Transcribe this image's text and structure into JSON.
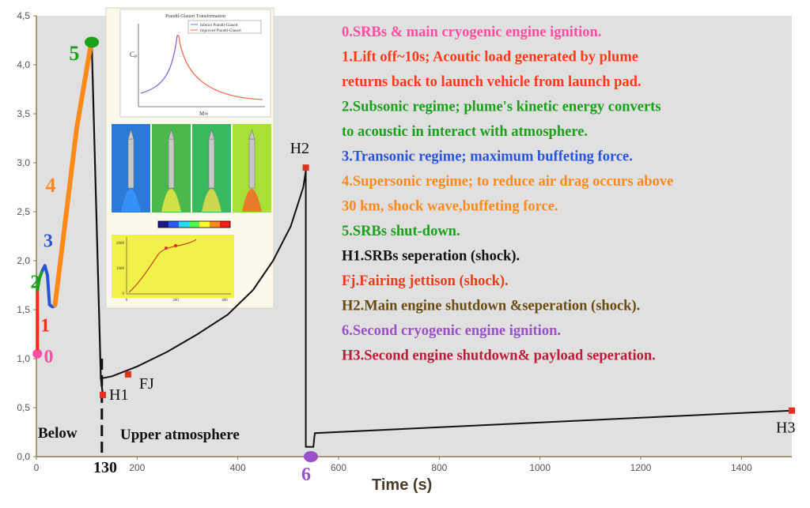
{
  "chart_data": {
    "type": "line",
    "title": "",
    "xlabel": "Time (s)",
    "ylabel": "",
    "xlim": [
      0,
      1500
    ],
    "ylim": [
      0,
      4.5
    ],
    "grid": false,
    "x_ticks": [
      "0",
      "200",
      "400",
      "600",
      "800",
      "1000",
      "1200",
      "1400"
    ],
    "y_ticks": [
      "0,0",
      "0,5",
      "1,0",
      "1,5",
      "2,0",
      "2,5",
      "3,0",
      "3,5",
      "4,0",
      "4,5"
    ],
    "series": [
      {
        "color": "#111111",
        "points": [
          [
            130,
            0.8
          ],
          [
            150,
            0.82
          ],
          [
            200,
            0.92
          ],
          [
            260,
            1.07
          ],
          [
            320,
            1.25
          ],
          [
            380,
            1.45
          ],
          [
            430,
            1.7
          ],
          [
            470,
            2.0
          ],
          [
            505,
            2.35
          ],
          [
            530,
            2.75
          ],
          [
            535,
            2.92
          ],
          [
            535,
            0.1
          ],
          [
            545,
            0.1
          ],
          [
            550,
            0.1
          ],
          [
            552,
            0.2
          ],
          [
            553,
            0.24
          ],
          [
            1500,
            0.47
          ]
        ]
      }
    ],
    "phases": [
      {
        "label": "0",
        "color": "#ff4fa0",
        "points": [
          [
            2,
            1.05
          ]
        ]
      },
      {
        "label": "1",
        "color": "#ff2a1a",
        "points": [
          [
            2,
            1.1
          ],
          [
            2,
            1.7
          ]
        ]
      },
      {
        "label": "2",
        "color": "#1aa01a",
        "points": [
          [
            2,
            1.7
          ],
          [
            6,
            1.82
          ],
          [
            12,
            1.9
          ]
        ]
      },
      {
        "label": "3",
        "color": "#2855d8",
        "points": [
          [
            12,
            1.9
          ],
          [
            17,
            1.95
          ],
          [
            22,
            1.85
          ],
          [
            24,
            1.7
          ],
          [
            26,
            1.55
          ],
          [
            32,
            1.53
          ],
          [
            37,
            1.54
          ]
        ]
      },
      {
        "label": "4",
        "color": "#ff8a1a",
        "points": [
          [
            37,
            1.55
          ],
          [
            55,
            2.3
          ],
          [
            80,
            3.35
          ],
          [
            108,
            4.2
          ]
        ]
      },
      {
        "label": "5",
        "color": "#1aa01a",
        "points": [
          [
            110,
            4.23
          ]
        ]
      }
    ],
    "markers": [
      {
        "label": "H1",
        "x": 132,
        "y": 0.63,
        "color": "#e03020"
      },
      {
        "label": "FJ",
        "x": 182,
        "y": 0.84,
        "color": "#e03020"
      },
      {
        "label": "H2",
        "x": 535,
        "y": 2.95,
        "color": "#e03020"
      },
      {
        "label": "6",
        "x": 545,
        "y": 0.0,
        "color": "#9b4fc8"
      },
      {
        "label": "H3",
        "x": 1500,
        "y": 0.47,
        "color": "#e03020"
      }
    ],
    "annotations": {
      "divider_label": "130",
      "below_label": "Below",
      "upper_label": "Upper atmosphere"
    },
    "legend_placement": "right",
    "legend": [
      {
        "text": "0.SRBs & main cryogenic engine ignition.",
        "color": "#ff4fa0"
      },
      {
        "text": "1.Lift off~10s; Acoutic load generated by plume",
        "color": "#ff3a1a"
      },
      {
        "text": "returns back to launch vehicle from launch pad.",
        "color": "#ff3a1a"
      },
      {
        "text": "2.Subsonic regime; plume's kinetic energy converts",
        "color": "#1aa01a"
      },
      {
        "text": "to acoustic in interact with atmosphere.",
        "color": "#1aa01a"
      },
      {
        "text": "3.Transonic regime; maximum buffeting force.",
        "color": "#2855d8"
      },
      {
        "text": "4.Supersonic regime; to reduce air drag occurs above",
        "color": "#ff8a1a"
      },
      {
        "text": "30 km, shock wave,buffeting force.",
        "color": "#ff8a1a"
      },
      {
        "text": "5.SRBs shut-down.",
        "color": "#1aa01a"
      },
      {
        "text": "H1.SRBs seperation (shock).",
        "color": "#111111"
      },
      {
        "text": "Fj.Fairing jettison (shock).",
        "color": "#e0401a"
      },
      {
        "text": "H2.Main engine shutdown &seperation (shock).",
        "color": "#6b4a10"
      },
      {
        "text": "6.Second cryogenic engine ignition.",
        "color": "#9b4fc8"
      },
      {
        "text": "H3.Second engine shutdown& payload seperation.",
        "color": "#c01a3a"
      }
    ],
    "inset_top": {
      "title": "Prandtl-Glauert Transformation",
      "legend": [
        "Inferior Prandtl-Glauert",
        "Improved Prandtl-Glauert"
      ],
      "ylabel": "Cₚ",
      "xlabel": "M∞",
      "colors": [
        "#8a6ad8",
        "#f07050"
      ]
    },
    "inset_bottom": {
      "x_ticks": [
        "0",
        "200",
        "400"
      ],
      "y_ticks": [
        "0",
        "1000",
        "2000"
      ],
      "line_color": "#c04a1a",
      "background": "#f4f04a"
    }
  }
}
